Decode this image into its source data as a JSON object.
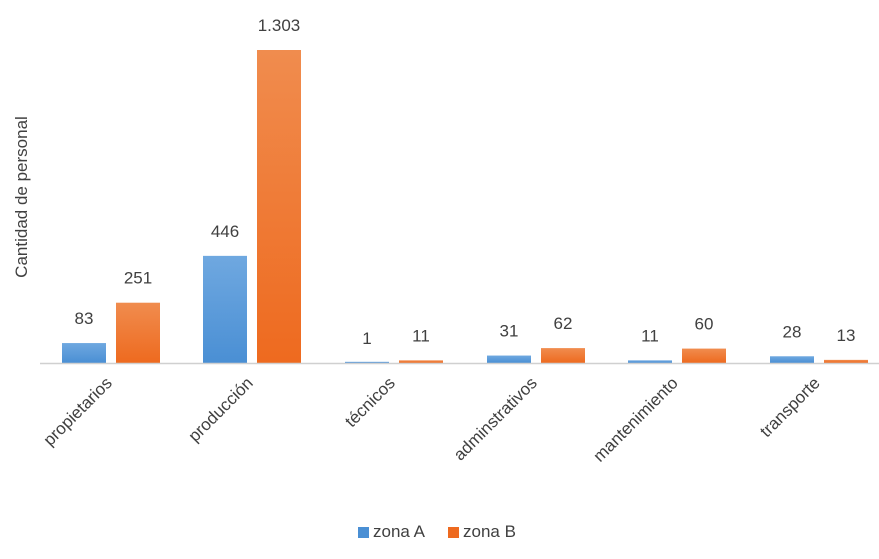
{
  "chart_data": {
    "type": "bar",
    "title": "",
    "xlabel": "",
    "ylabel": "Cantidad de personal",
    "categories": [
      "propietarios",
      "producción",
      "técnicos",
      "adminstrativos",
      "mantenimiento",
      "transporte"
    ],
    "series": [
      {
        "name": "zona A",
        "values": [
          83,
          446,
          1,
          31,
          11,
          28
        ],
        "labels": [
          "83",
          "446",
          "1",
          "31",
          "11",
          "28"
        ],
        "color": "#4a8fd4",
        "color_light": "#6fa8e0"
      },
      {
        "name": "zona B",
        "values": [
          251,
          1303,
          11,
          62,
          60,
          13
        ],
        "labels": [
          "251",
          "1.303",
          "11",
          "62",
          "60",
          "13"
        ],
        "color": "#ee6a1f",
        "color_light": "#f08c4e"
      }
    ],
    "ylim": [
      0,
      1303
    ],
    "grid": false,
    "legend_position": "bottom"
  }
}
